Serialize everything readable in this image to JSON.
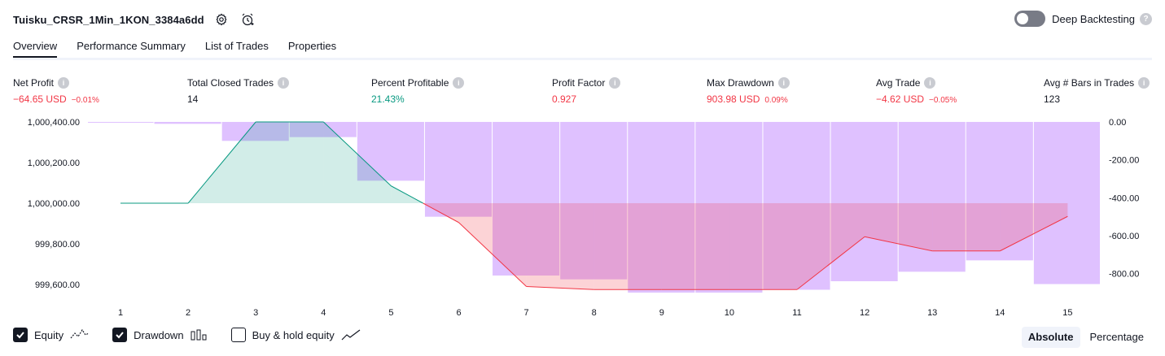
{
  "header": {
    "title": "Tuisku_CRSR_1Min_1KON_3384a6dd",
    "settings_icon": "gear-icon",
    "alert_icon": "alarm-clock-add-icon"
  },
  "deep_backtesting": {
    "label": "Deep Backtesting",
    "enabled": false
  },
  "tabs": [
    {
      "label": "Overview",
      "active": true
    },
    {
      "label": "Performance Summary",
      "active": false
    },
    {
      "label": "List of Trades",
      "active": false
    },
    {
      "label": "Properties",
      "active": false
    }
  ],
  "metrics": {
    "net_profit": {
      "label": "Net Profit",
      "value": "−64.65 USD",
      "sub": "−0.01%"
    },
    "total_closed_trades": {
      "label": "Total Closed Trades",
      "value": "14"
    },
    "percent_profitable": {
      "label": "Percent Profitable",
      "value": "21.43%"
    },
    "profit_factor": {
      "label": "Profit Factor",
      "value": "0.927"
    },
    "max_drawdown": {
      "label": "Max Drawdown",
      "value": "903.98 USD",
      "sub": "0.09%"
    },
    "avg_trade": {
      "label": "Avg Trade",
      "value": "−4.62 USD",
      "sub": "−0.05%"
    },
    "avg_bars": {
      "label": "Avg # Bars in Trades",
      "value": "123"
    }
  },
  "chart_data": {
    "type": "line",
    "x": [
      1,
      2,
      3,
      4,
      5,
      6,
      7,
      8,
      9,
      10,
      11,
      12,
      13,
      14,
      15
    ],
    "equity": [
      1000000.0,
      1000000.0,
      1000400.0,
      1000400.0,
      1000085.0,
      999905.0,
      999590.0,
      999575.0,
      999575.0,
      999575.0,
      999575.0,
      999835.0,
      999765.0,
      999765.0,
      999935.0
    ],
    "drawdown": [
      0.0,
      -10.0,
      -100.0,
      -80.0,
      -310.0,
      -500.0,
      -810.0,
      -830.0,
      -900.0,
      -900.0,
      -885.0,
      -840.0,
      -790.0,
      -730.0,
      -855.0
    ],
    "equity_base": 1000000.0,
    "y_left_ticks": [
      "1,000,400.00",
      "1,000,200.00",
      "1,000,000.00",
      "999,800.00",
      "999,600.00"
    ],
    "y_left_range": [
      999560.0,
      1000400.0
    ],
    "y_right_ticks": [
      "0.00",
      "-200.00",
      "-400.00",
      "-600.00",
      "-800.00"
    ],
    "y_right_range": [
      -900.0,
      0.0
    ],
    "x_ticks": [
      "1",
      "2",
      "3",
      "4",
      "5",
      "6",
      "7",
      "8",
      "9",
      "10",
      "11",
      "12",
      "13",
      "14",
      "15"
    ],
    "colors": {
      "equity_up": "#089981",
      "equity_down": "#f23645",
      "drawdown": "#d1a6ff"
    }
  },
  "legend": {
    "equity": {
      "label": "Equity",
      "checked": true
    },
    "drawdown": {
      "label": "Drawdown",
      "checked": true
    },
    "buy_hold": {
      "label": "Buy & hold equity",
      "checked": false
    }
  },
  "modes": [
    {
      "label": "Absolute",
      "active": true
    },
    {
      "label": "Percentage",
      "active": false
    }
  ]
}
